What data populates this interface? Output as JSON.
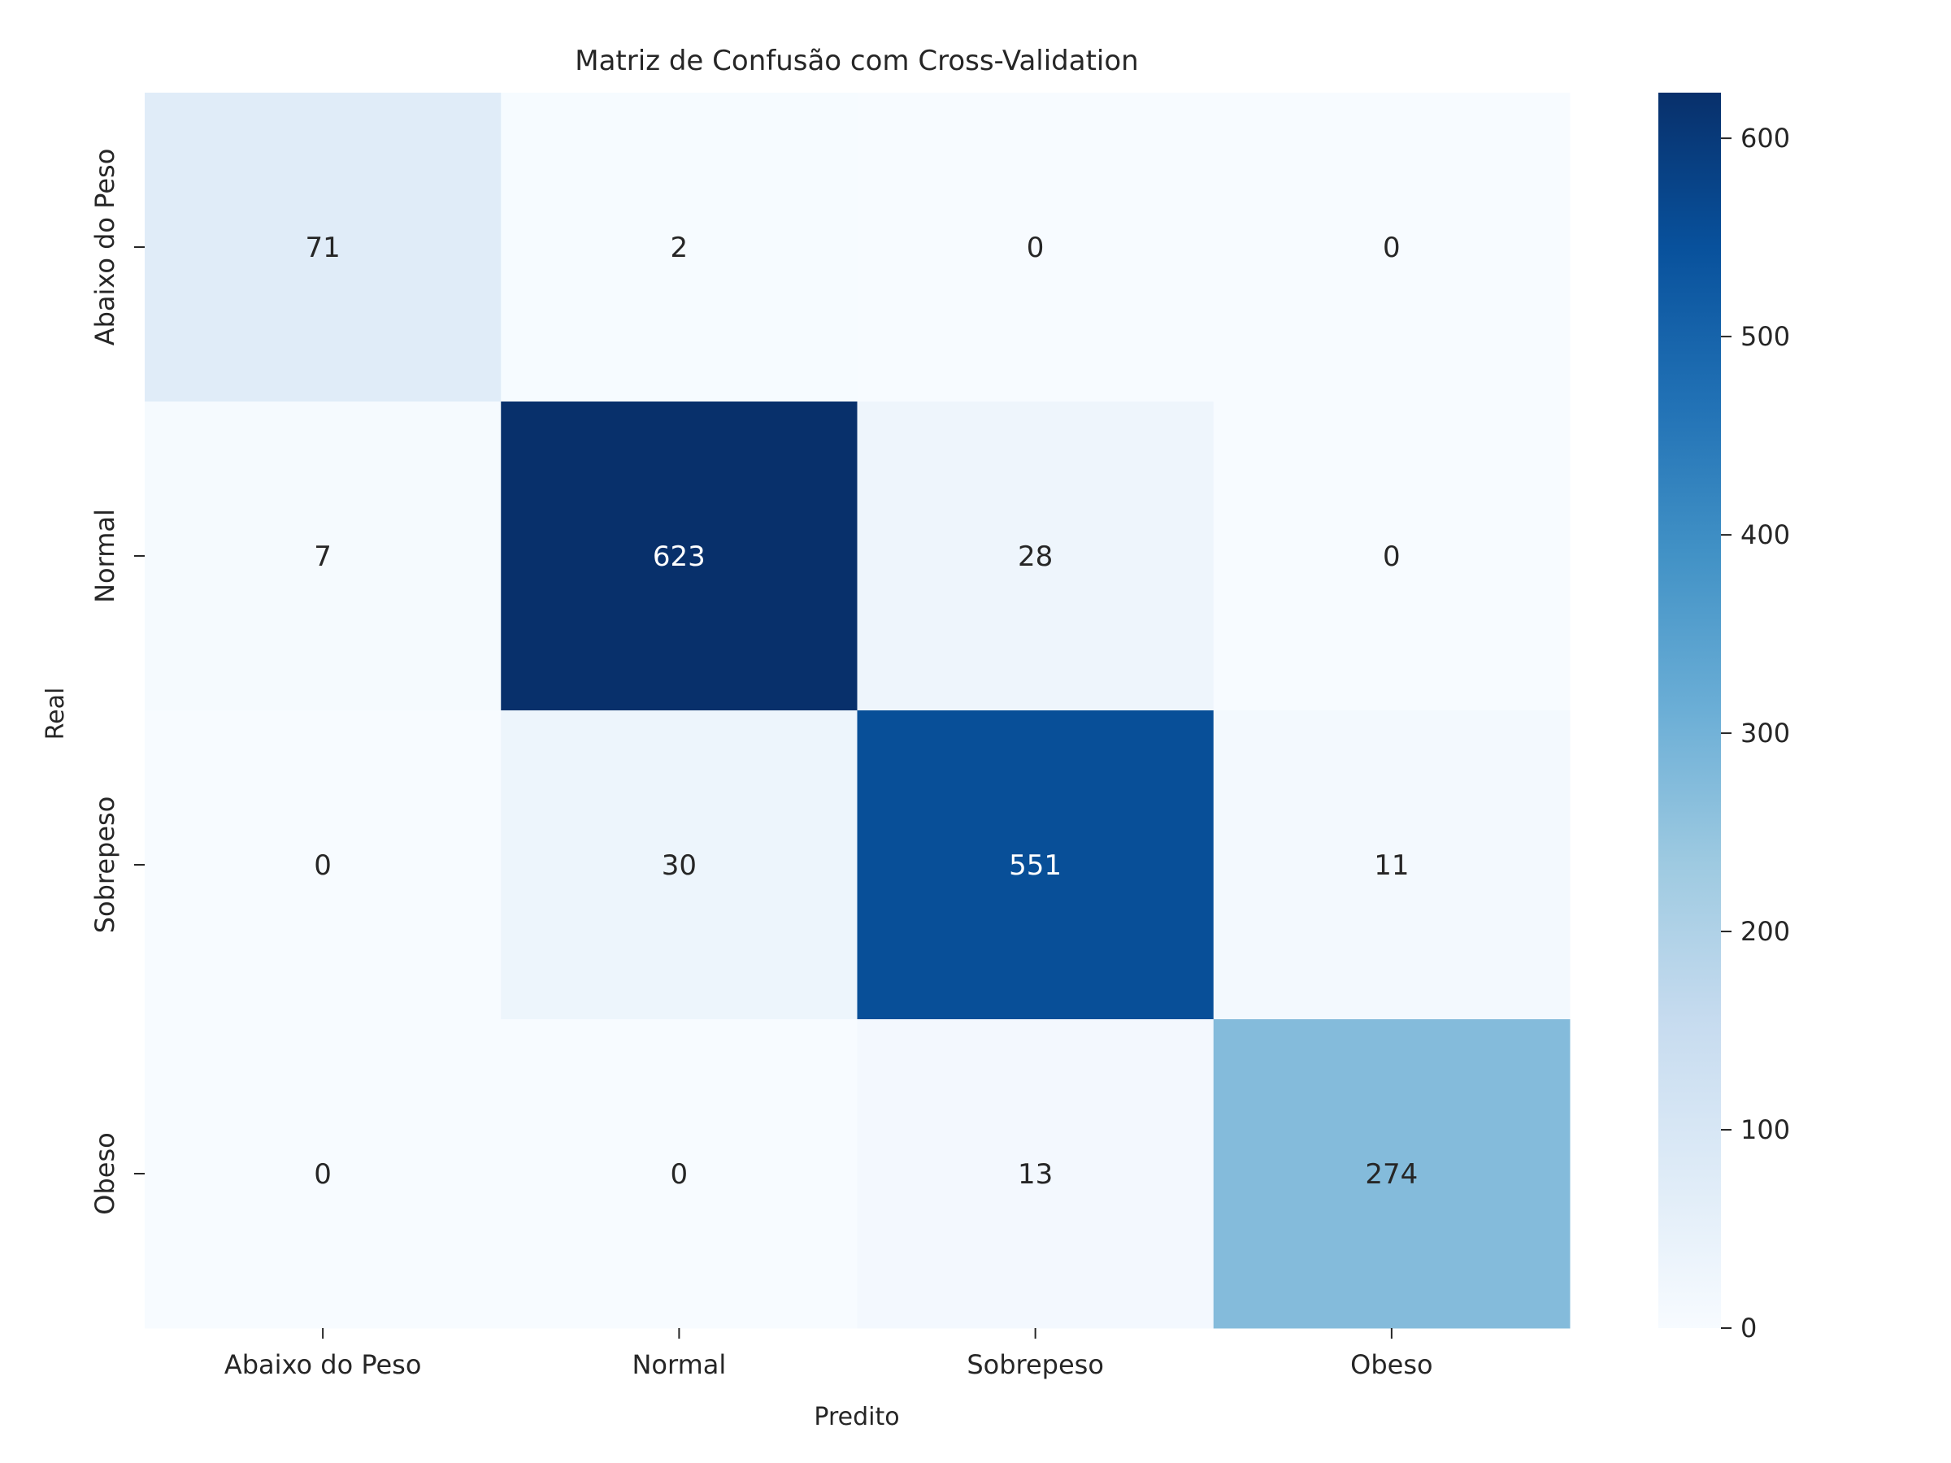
{
  "chart_data": {
    "type": "heatmap",
    "title": "Matriz de Confusão com Cross-Validation",
    "xlabel": "Predito",
    "ylabel": "Real",
    "x_categories": [
      "Abaixo do Peso",
      "Normal",
      "Sobrepeso",
      "Obeso"
    ],
    "y_categories": [
      "Abaixo do Peso",
      "Normal",
      "Sobrepeso",
      "Obeso"
    ],
    "matrix": [
      [
        71,
        2,
        0,
        0
      ],
      [
        7,
        623,
        28,
        0
      ],
      [
        0,
        30,
        551,
        11
      ],
      [
        0,
        0,
        13,
        274
      ]
    ],
    "colormap": "Blues",
    "colorbar": {
      "range": [
        0,
        623
      ],
      "ticks": [
        0,
        100,
        200,
        300,
        400,
        500,
        600
      ]
    },
    "colors": {
      "low": "#f7fbff",
      "high": "#08306b"
    }
  }
}
